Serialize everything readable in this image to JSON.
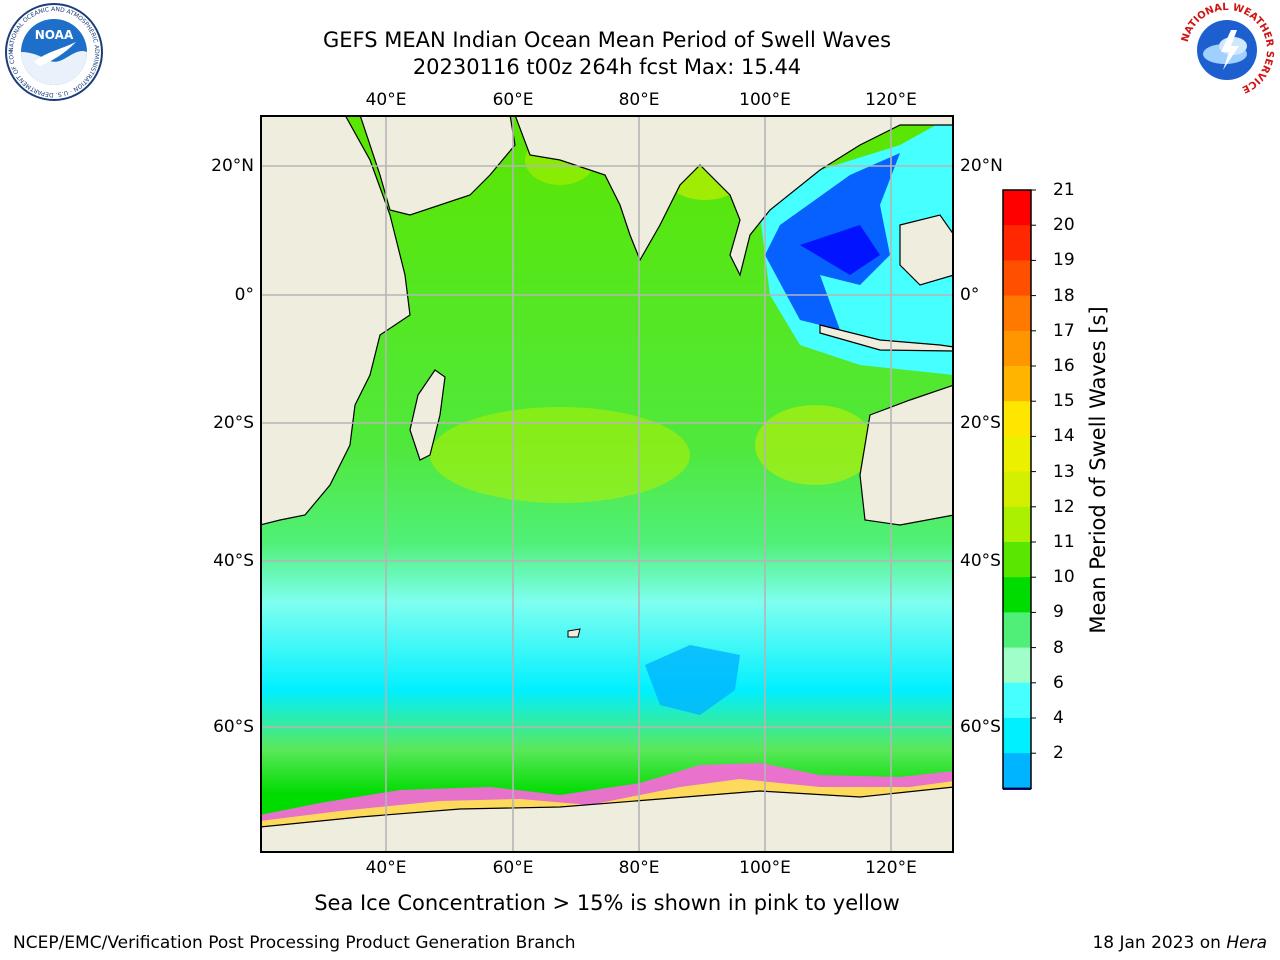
{
  "title": {
    "line1": "GEFS MEAN Indian Ocean Mean Period of Swell Waves",
    "line2": "20230116 t00z 264h fcst   Max: 15.44"
  },
  "map": {
    "lon_ticks": [
      "40°E",
      "60°E",
      "80°E",
      "100°E",
      "120°E"
    ],
    "lat_ticks": [
      "20°N",
      "0°",
      "20°S",
      "40°S",
      "60°S"
    ],
    "lon_range": [
      20,
      130
    ],
    "lat_range": [
      -75,
      27
    ],
    "colors": {
      "land": "#efedde",
      "grid": "#b5b5b5",
      "coast": "#000000"
    }
  },
  "colorbar": {
    "title": "Mean Period of Swell Waves [s]",
    "labels": [
      "21",
      "20",
      "19",
      "18",
      "17",
      "16",
      "15",
      "14",
      "13",
      "12",
      "11",
      "10",
      "9",
      "8",
      "6",
      "4",
      "2"
    ],
    "colors_top_to_bottom": [
      "#ff0000",
      "#ff2800",
      "#ff5000",
      "#ff7800",
      "#ff9600",
      "#ffb400",
      "#ffe600",
      "#eaf000",
      "#d2f000",
      "#aaf000",
      "#5ae600",
      "#00dc00",
      "#50f078",
      "#a0ffc8",
      "#46ffff",
      "#00f0ff",
      "#00b4ff",
      "#0050ff",
      "#0000ff"
    ]
  },
  "ice_note": "Sea Ice Concentration > 15% is shown in pink to yellow",
  "footer": {
    "left": "NCEP/EMC/Verification Post Processing Product Generation Branch",
    "right_date": "18 Jan 2023 on ",
    "right_machine": "Hera"
  },
  "logos": {
    "noaa_text": "NOAA",
    "noaa_ring": "NATIONAL OCEANIC AND ATMOSPHERIC ADMINISTRATION · U.S. DEPARTMENT OF COMMERCE",
    "nws_ring": "NATIONAL WEATHER SERVICE"
  }
}
